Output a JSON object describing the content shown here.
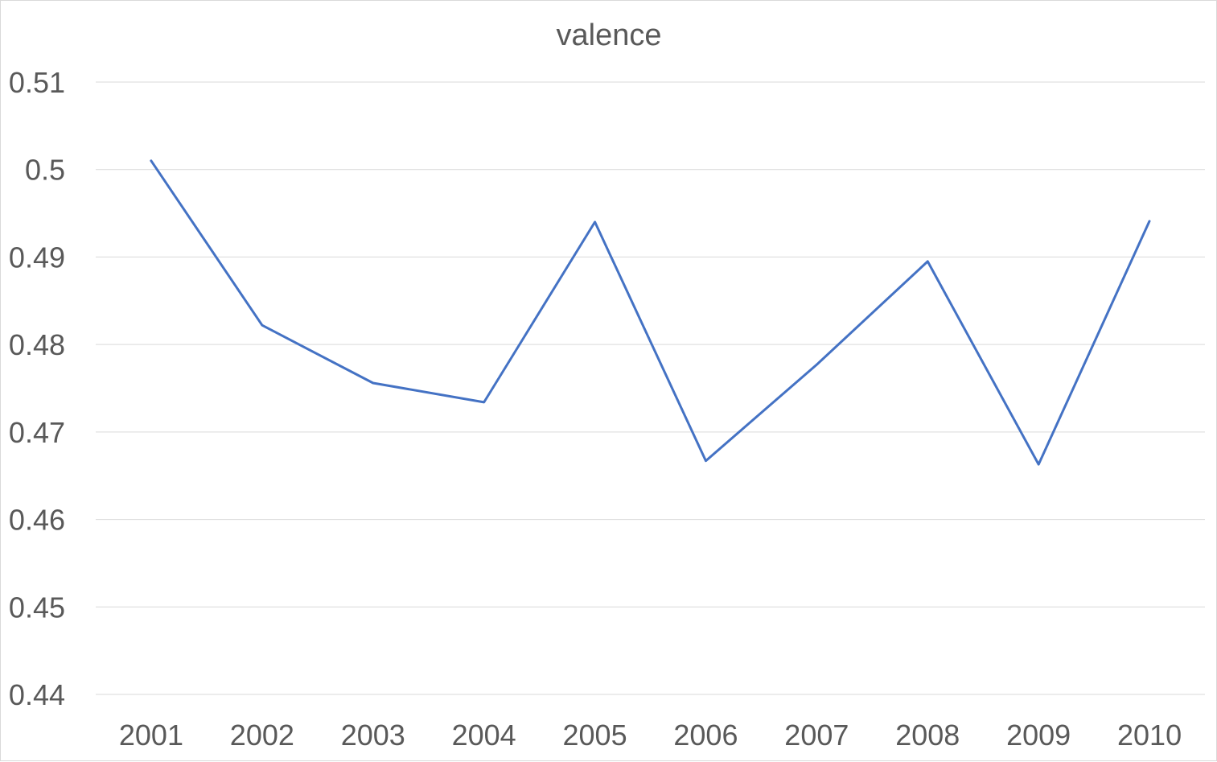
{
  "chart_data": {
    "type": "line",
    "title": "valence",
    "xlabel": "",
    "ylabel": "",
    "categories": [
      "2001",
      "2002",
      "2003",
      "2004",
      "2005",
      "2006",
      "2007",
      "2008",
      "2009",
      "2010"
    ],
    "series": [
      {
        "values": [
          0.501,
          0.4822,
          0.4756,
          0.4734,
          0.494,
          0.4667,
          0.4777,
          0.4895,
          0.4663,
          0.4941
        ],
        "color": "#4472c4"
      }
    ],
    "ylim": [
      0.44,
      0.51
    ],
    "yticks": [
      "0.44",
      "0.45",
      "0.46",
      "0.47",
      "0.48",
      "0.49",
      "0.5",
      "0.51"
    ],
    "grid": true,
    "legend": "none"
  }
}
